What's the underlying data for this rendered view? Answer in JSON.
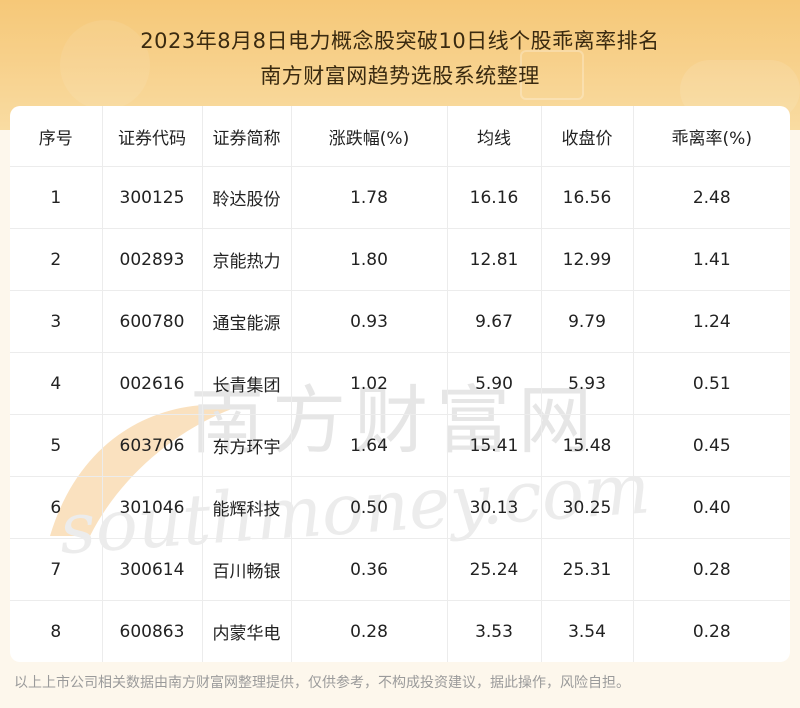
{
  "header": {
    "title_line1": "2023年8月8日电力概念股突破10日线个股乖离率排名",
    "title_line2": "南方财富网趋势选股系统整理"
  },
  "table": {
    "columns": [
      "序号",
      "证券代码",
      "证券简称",
      "涨跌幅(%)",
      "均线",
      "收盘价",
      "乖离率(%)"
    ],
    "rows": [
      [
        "1",
        "300125",
        "聆达股份",
        "1.78",
        "16.16",
        "16.56",
        "2.48"
      ],
      [
        "2",
        "002893",
        "京能热力",
        "1.80",
        "12.81",
        "12.99",
        "1.41"
      ],
      [
        "3",
        "600780",
        "通宝能源",
        "0.93",
        "9.67",
        "9.79",
        "1.24"
      ],
      [
        "4",
        "002616",
        "长青集团",
        "1.02",
        "5.90",
        "5.93",
        "0.51"
      ],
      [
        "5",
        "603706",
        "东方环宇",
        "1.64",
        "15.41",
        "15.48",
        "0.45"
      ],
      [
        "6",
        "301046",
        "能辉科技",
        "0.50",
        "30.13",
        "30.25",
        "0.40"
      ],
      [
        "7",
        "300614",
        "百川畅银",
        "0.36",
        "25.24",
        "25.31",
        "0.28"
      ],
      [
        "8",
        "600863",
        "内蒙华电",
        "0.28",
        "3.53",
        "3.54",
        "0.28"
      ]
    ]
  },
  "watermark": {
    "cn_text": "南方财富网",
    "en_text": "southmoney.com"
  },
  "footer": {
    "disclaimer": "以上上市公司相关数据由南方财富网整理提供，仅供参考，不构成投资建议，据此操作，风险自担。"
  },
  "colors": {
    "header_gradient_top": "#f6c878",
    "header_gradient_bottom": "#f9dca2",
    "page_background": "#fdf7ec",
    "watermark": "#e9e9e9",
    "watermark_accent": "#f6c88a"
  }
}
